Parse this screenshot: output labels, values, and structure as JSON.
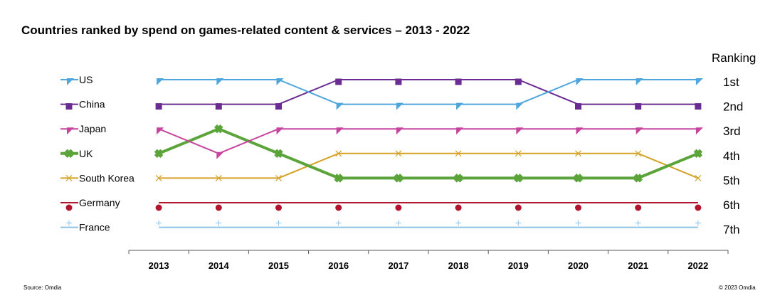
{
  "chart_data": {
    "type": "line",
    "title": "Countries ranked by spend on games-related content & services – 2013 - 2022",
    "categories": [
      "2013",
      "2014",
      "2015",
      "2016",
      "2017",
      "2018",
      "2019",
      "2020",
      "2021",
      "2022"
    ],
    "y_axis_title": "Ranking",
    "rank_labels": [
      "1st",
      "2nd",
      "3rd",
      "4th",
      "5th",
      "6th",
      "7th"
    ],
    "ylim": [
      1,
      7
    ],
    "y_inverted": true,
    "grid": false,
    "legend_position": "left",
    "series": [
      {
        "name": "US",
        "values": [
          1,
          1,
          1,
          2,
          2,
          2,
          2,
          1,
          1,
          1
        ],
        "color": "#4EA6DC",
        "marker": "triangle",
        "width": 2
      },
      {
        "name": "China",
        "values": [
          2,
          2,
          2,
          1,
          1,
          1,
          1,
          2,
          2,
          2
        ],
        "color": "#6A2C91",
        "marker": "square",
        "width": 2
      },
      {
        "name": "Japan",
        "values": [
          3,
          4,
          3,
          3,
          3,
          3,
          3,
          3,
          3,
          3
        ],
        "color": "#C7449E",
        "marker": "triangle",
        "width": 2
      },
      {
        "name": "UK",
        "values": [
          4,
          3,
          4,
          5,
          5,
          5,
          5,
          5,
          5,
          4
        ],
        "color": "#5BA43A",
        "marker": "cross",
        "width": 4
      },
      {
        "name": "South Korea",
        "values": [
          5,
          5,
          5,
          4,
          4,
          4,
          4,
          4,
          4,
          5
        ],
        "color": "#D4A226",
        "marker": "x",
        "width": 2
      },
      {
        "name": "Germany",
        "values": [
          6,
          6,
          6,
          6,
          6,
          6,
          6,
          6,
          6,
          6
        ],
        "color": "#B2152E",
        "marker": "circle",
        "width": 2
      },
      {
        "name": "France",
        "values": [
          7,
          7,
          7,
          7,
          7,
          7,
          7,
          7,
          7,
          7
        ],
        "color": "#8DC3E8",
        "marker": "plus",
        "width": 2
      }
    ]
  },
  "footer": {
    "source": "Source: Omdia",
    "copyright": "© 2023 Omdia"
  }
}
